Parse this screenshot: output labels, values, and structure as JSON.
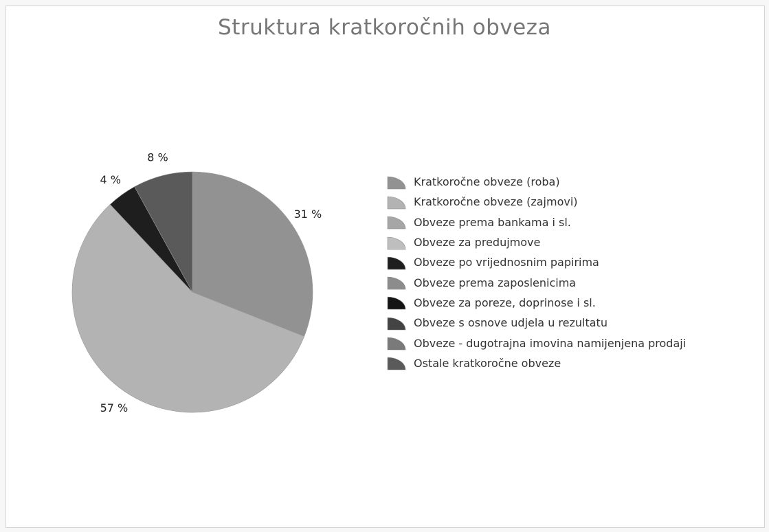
{
  "chart_data": {
    "type": "pie",
    "title": "Struktura kratkoročnih obveza",
    "slices": [
      {
        "name": "Kratkoročne obveze (roba)",
        "value": 31,
        "label": "31 %",
        "color": "#929292"
      },
      {
        "name": "Kratkoročne obveze (zajmovi)",
        "value": 57,
        "label": "57 %",
        "color": "#b3b3b3"
      },
      {
        "name": "Obveze prema bankama i sl.",
        "value": 0,
        "label": "",
        "color": "#a6a6a6"
      },
      {
        "name": "Obveze za predujmove",
        "value": 0,
        "label": "",
        "color": "#bebebe"
      },
      {
        "name": "Obveze po vrijednosnim papirima",
        "value": 4,
        "label": "4 %",
        "color": "#1e1e1e"
      },
      {
        "name": "Obveze prema zaposlenicima",
        "value": 0,
        "label": "",
        "color": "#8c8c8c"
      },
      {
        "name": "Obveze za poreze, doprinose i sl.",
        "value": 0,
        "label": "",
        "color": "#141414"
      },
      {
        "name": "Obveze s osnove udjela u rezultatu",
        "value": 0,
        "label": "",
        "color": "#444444"
      },
      {
        "name": "Obveze - dugotrajna imovina namijenjena prodaji",
        "value": 0,
        "label": "",
        "color": "#7a7a7a"
      },
      {
        "name": "Ostale kratkoročne obveze",
        "value": 8,
        "label": "8 %",
        "color": "#5a5a5a"
      }
    ],
    "legend_position": "right"
  }
}
